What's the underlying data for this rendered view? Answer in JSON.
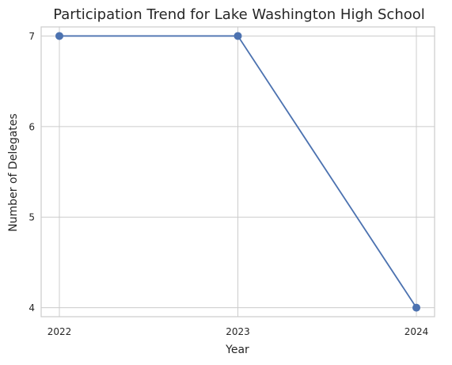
{
  "chart_data": {
    "type": "line",
    "title": "Participation Trend for Lake Washington High School",
    "xlabel": "Year",
    "ylabel": "Number of Delegates",
    "x": [
      "2022",
      "2023",
      "2024"
    ],
    "series": [
      {
        "values": [
          7,
          7,
          4
        ],
        "color": "#4c72b0",
        "marker": "circle"
      }
    ],
    "yticks": [
      4,
      5,
      6,
      7
    ],
    "ylim": [
      3.9,
      7.1
    ],
    "grid": true
  }
}
